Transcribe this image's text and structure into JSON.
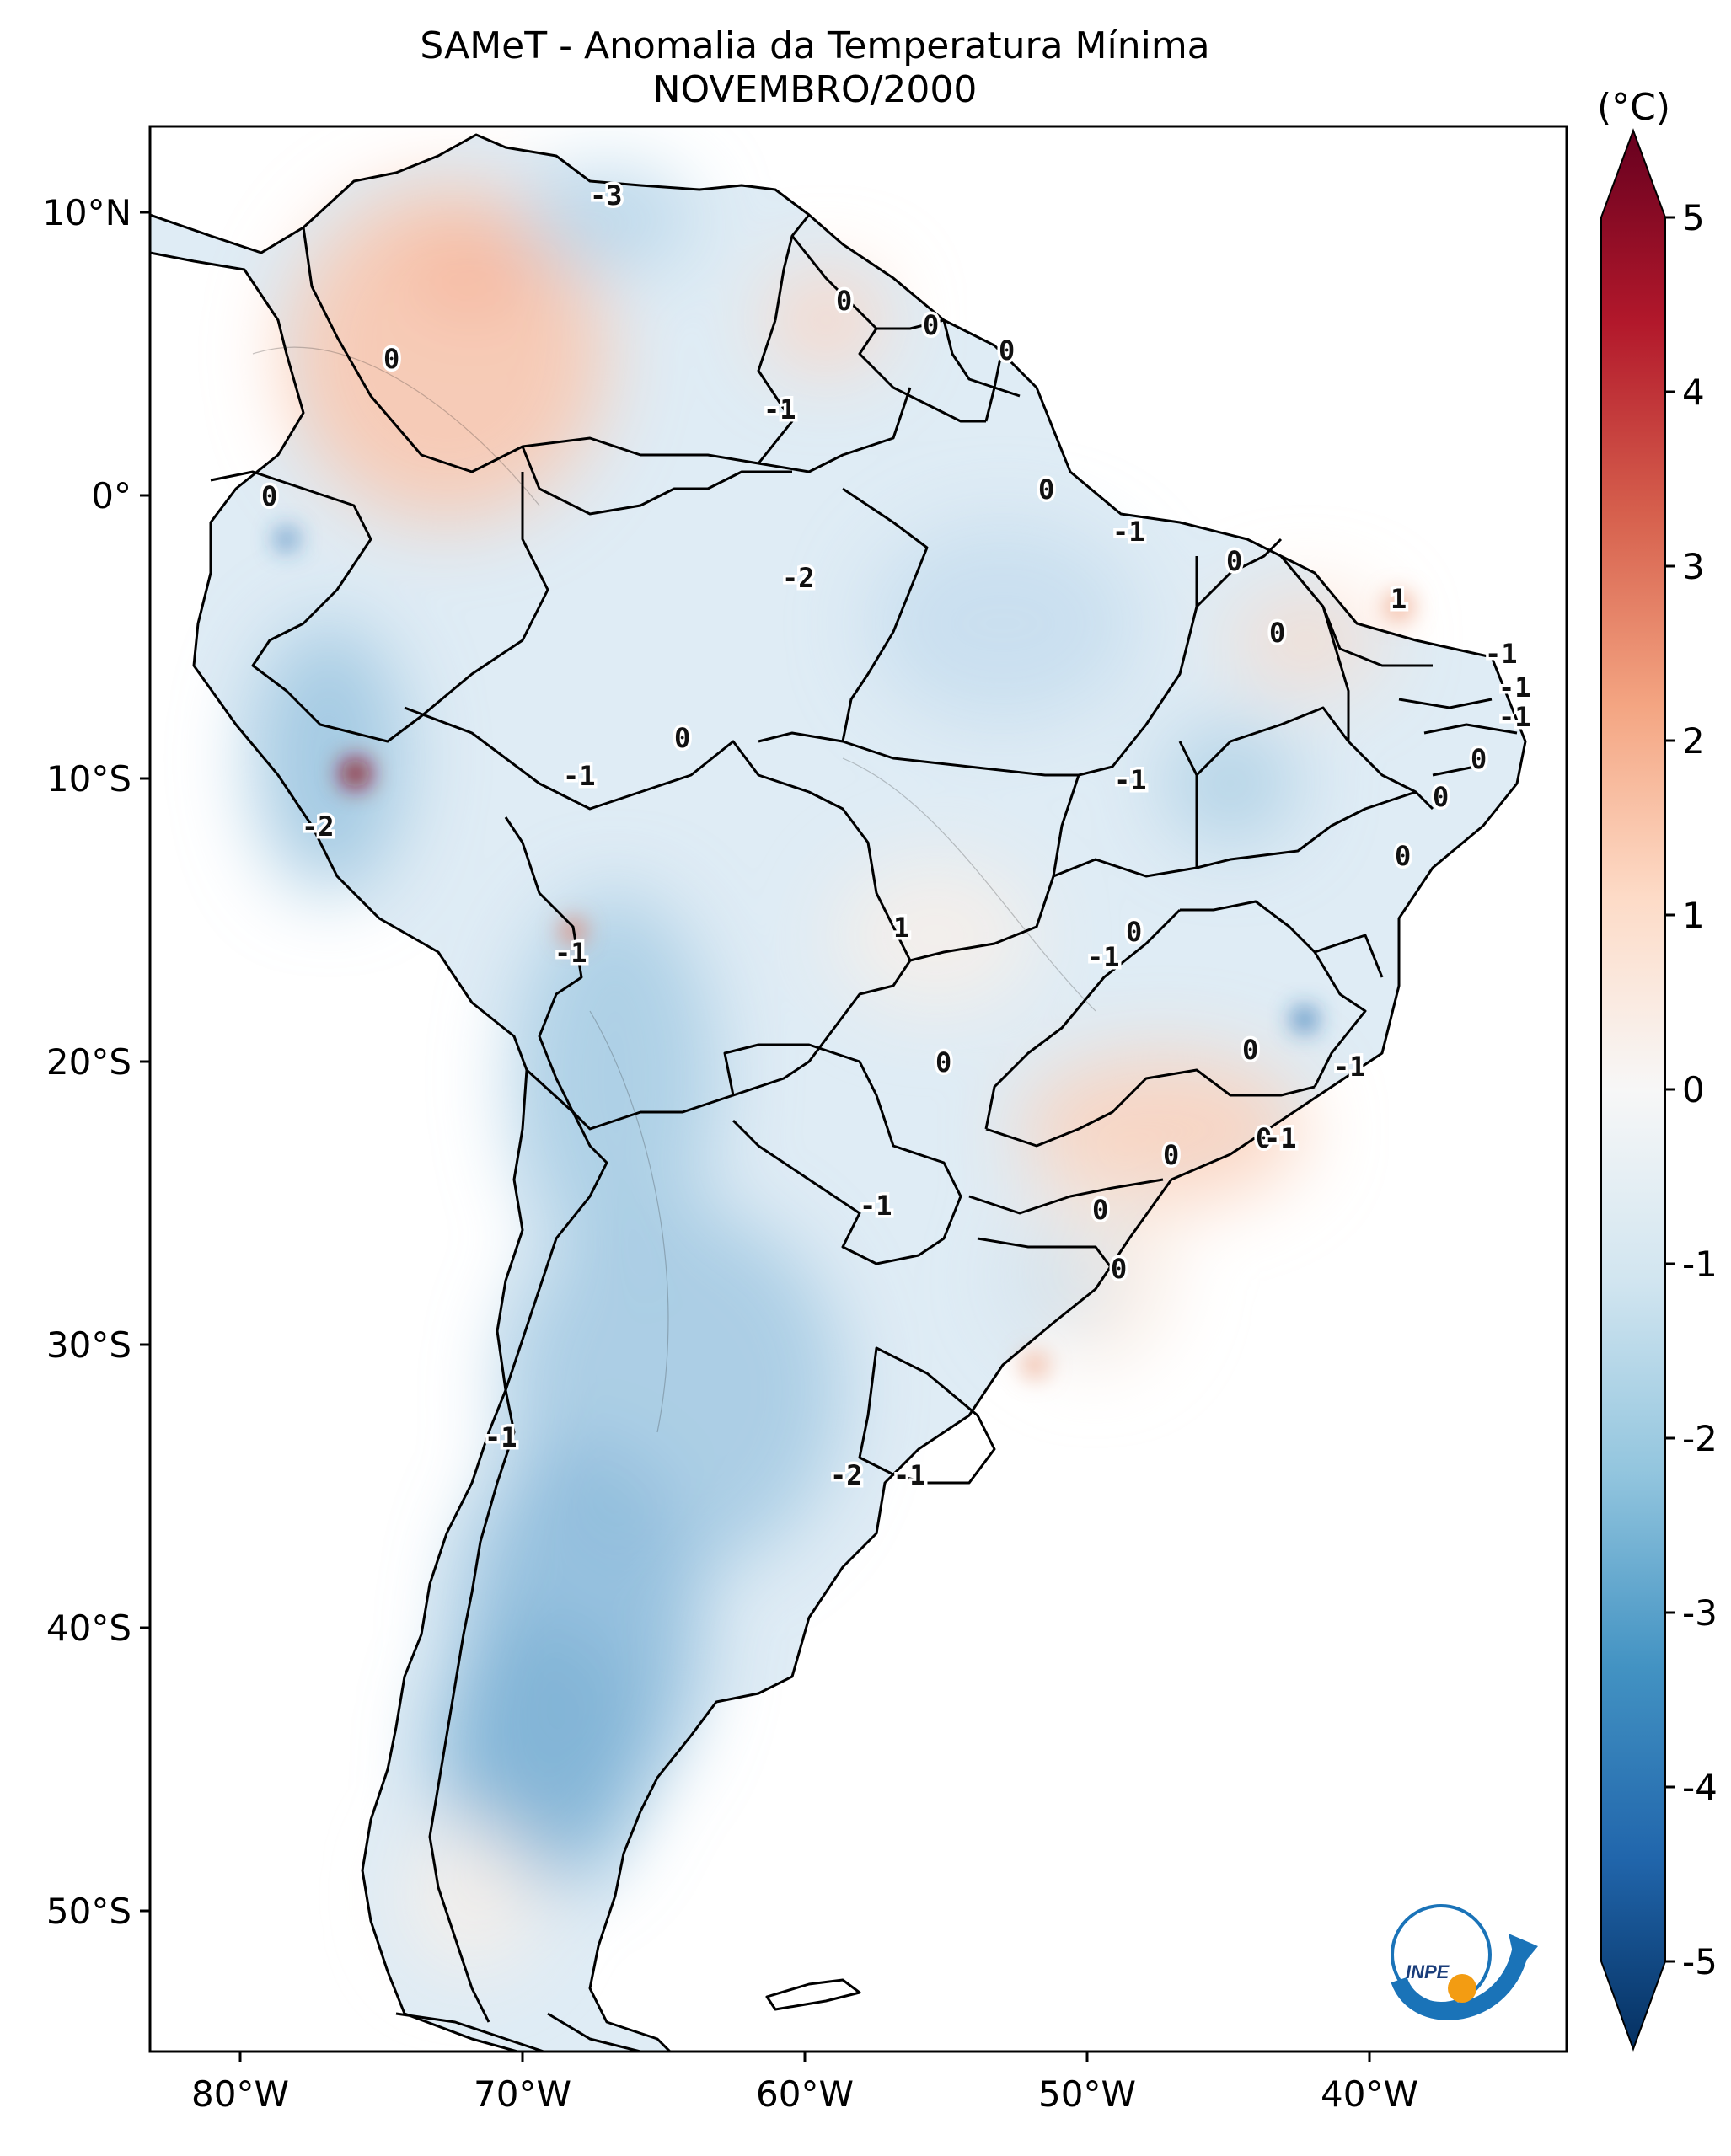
{
  "title": "SAMeT - Anomalia da Temperatura Mínima",
  "subtitle": "NOVEMBRO/2000",
  "colorbar": {
    "unit": "(°C)",
    "ticks": [
      "5",
      "4",
      "3",
      "2",
      "1",
      "0",
      "-1",
      "-2",
      "-3",
      "-4",
      "-5"
    ],
    "range": [
      -5,
      5
    ],
    "colors": [
      "#053061",
      "#2166ac",
      "#4393c3",
      "#92c5de",
      "#d1e5f0",
      "#f7f7f7",
      "#fddbc7",
      "#f4a582",
      "#d6604d",
      "#b2182b",
      "#67001f"
    ]
  },
  "axes": {
    "lon_ticks": [
      "80°W",
      "70°W",
      "60°W",
      "50°W",
      "40°W"
    ],
    "lat_ticks": [
      "10°N",
      "0°",
      "10°S",
      "20°S",
      "30°S",
      "40°S",
      "50°S"
    ]
  },
  "contour_labels": [
    "-3",
    "0",
    "0",
    "0",
    "0",
    "-1",
    "0",
    "-1",
    "-2",
    "0",
    "1",
    "0",
    "-1",
    "-1",
    "-1",
    "0",
    "0",
    "0",
    "0",
    "-1",
    "-1",
    "0",
    "-2",
    "1",
    "0",
    "-1",
    "-1",
    "0",
    "0",
    "-1",
    "0",
    "-1",
    "0",
    "0",
    "-1",
    "0",
    "-1",
    "-2",
    "-1"
  ],
  "logo": {
    "text": "INPE",
    "ring_color": "#1a73b8",
    "dot_color": "#f39c12"
  }
}
